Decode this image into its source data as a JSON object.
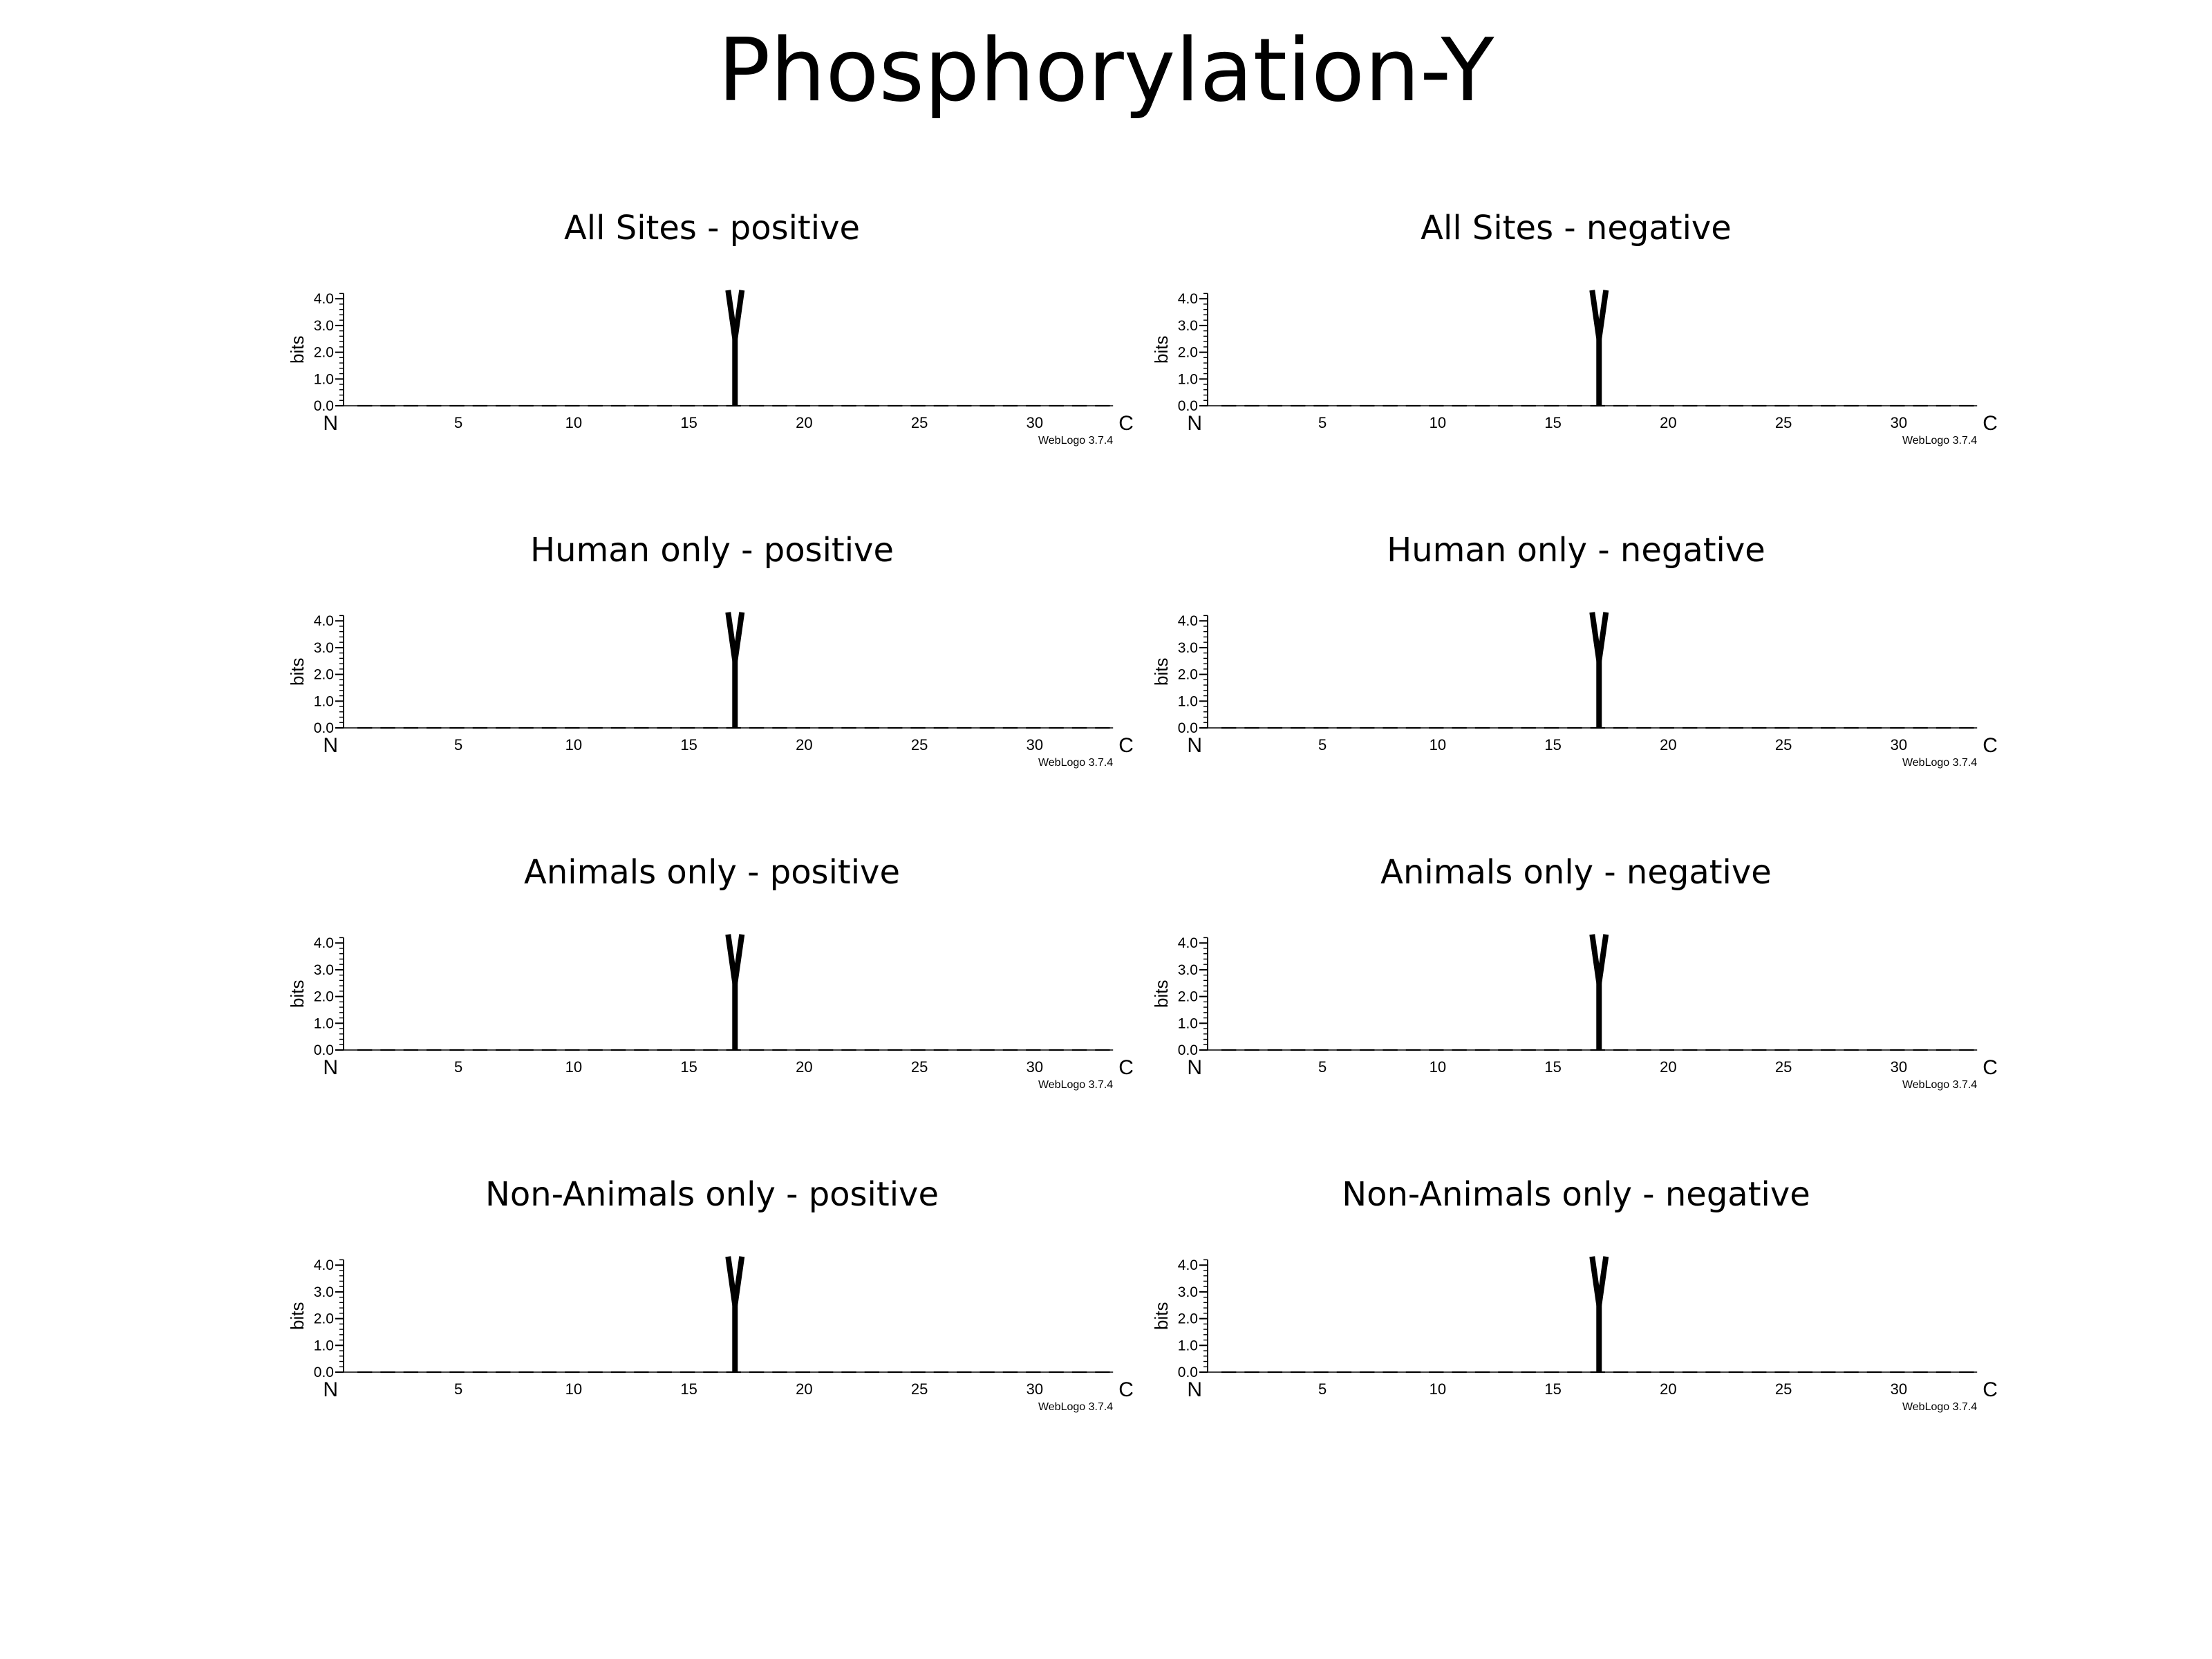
{
  "title": "Phosphorylation-Y",
  "chart_data": [
    {
      "type": "sequence-logo",
      "title": "All Sites - positive",
      "ylabel": "bits",
      "ylim": [
        0,
        4.32
      ],
      "yticks": [
        "0.0",
        "1.0",
        "2.0",
        "3.0",
        "4.0"
      ],
      "xticks": [
        "5",
        "10",
        "15",
        "20",
        "25",
        "30"
      ],
      "x_start_label": "N",
      "x_end_label": "C",
      "positions": [
        1,
        33
      ],
      "watermark": "WebLogo 3.7.4",
      "letters": [
        {
          "position": 17,
          "residue": "Y",
          "bits": 4.32
        }
      ]
    },
    {
      "type": "sequence-logo",
      "title": "All Sites - negative",
      "ylabel": "bits",
      "ylim": [
        0,
        4.32
      ],
      "yticks": [
        "0.0",
        "1.0",
        "2.0",
        "3.0",
        "4.0"
      ],
      "xticks": [
        "5",
        "10",
        "15",
        "20",
        "25",
        "30"
      ],
      "x_start_label": "N",
      "x_end_label": "C",
      "positions": [
        1,
        33
      ],
      "watermark": "WebLogo 3.7.4",
      "letters": [
        {
          "position": 17,
          "residue": "Y",
          "bits": 4.32
        }
      ]
    },
    {
      "type": "sequence-logo",
      "title": "Human only - positive",
      "ylabel": "bits",
      "ylim": [
        0,
        4.32
      ],
      "yticks": [
        "0.0",
        "1.0",
        "2.0",
        "3.0",
        "4.0"
      ],
      "xticks": [
        "5",
        "10",
        "15",
        "20",
        "25",
        "30"
      ],
      "x_start_label": "N",
      "x_end_label": "C",
      "positions": [
        1,
        33
      ],
      "watermark": "WebLogo 3.7.4",
      "letters": [
        {
          "position": 17,
          "residue": "Y",
          "bits": 4.32
        }
      ]
    },
    {
      "type": "sequence-logo",
      "title": "Human only - negative",
      "ylabel": "bits",
      "ylim": [
        0,
        4.32
      ],
      "yticks": [
        "0.0",
        "1.0",
        "2.0",
        "3.0",
        "4.0"
      ],
      "xticks": [
        "5",
        "10",
        "15",
        "20",
        "25",
        "30"
      ],
      "x_start_label": "N",
      "x_end_label": "C",
      "positions": [
        1,
        33
      ],
      "watermark": "WebLogo 3.7.4",
      "letters": [
        {
          "position": 17,
          "residue": "Y",
          "bits": 4.32
        }
      ]
    },
    {
      "type": "sequence-logo",
      "title": "Animals only - positive",
      "ylabel": "bits",
      "ylim": [
        0,
        4.32
      ],
      "yticks": [
        "0.0",
        "1.0",
        "2.0",
        "3.0",
        "4.0"
      ],
      "xticks": [
        "5",
        "10",
        "15",
        "20",
        "25",
        "30"
      ],
      "x_start_label": "N",
      "x_end_label": "C",
      "positions": [
        1,
        33
      ],
      "watermark": "WebLogo 3.7.4",
      "letters": [
        {
          "position": 17,
          "residue": "Y",
          "bits": 4.32
        }
      ]
    },
    {
      "type": "sequence-logo",
      "title": "Animals only - negative",
      "ylabel": "bits",
      "ylim": [
        0,
        4.32
      ],
      "yticks": [
        "0.0",
        "1.0",
        "2.0",
        "3.0",
        "4.0"
      ],
      "xticks": [
        "5",
        "10",
        "15",
        "20",
        "25",
        "30"
      ],
      "x_start_label": "N",
      "x_end_label": "C",
      "positions": [
        1,
        33
      ],
      "watermark": "WebLogo 3.7.4",
      "letters": [
        {
          "position": 17,
          "residue": "Y",
          "bits": 4.32
        }
      ]
    },
    {
      "type": "sequence-logo",
      "title": "Non-Animals only - positive",
      "ylabel": "bits",
      "ylim": [
        0,
        4.32
      ],
      "yticks": [
        "0.0",
        "1.0",
        "2.0",
        "3.0",
        "4.0"
      ],
      "xticks": [
        "5",
        "10",
        "15",
        "20",
        "25",
        "30"
      ],
      "x_start_label": "N",
      "x_end_label": "C",
      "positions": [
        1,
        33
      ],
      "watermark": "WebLogo 3.7.4",
      "letters": [
        {
          "position": 17,
          "residue": "Y",
          "bits": 4.32
        }
      ]
    },
    {
      "type": "sequence-logo",
      "title": "Non-Animals only - negative",
      "ylabel": "bits",
      "ylim": [
        0,
        4.32
      ],
      "yticks": [
        "0.0",
        "1.0",
        "2.0",
        "3.0",
        "4.0"
      ],
      "xticks": [
        "5",
        "10",
        "15",
        "20",
        "25",
        "30"
      ],
      "x_start_label": "N",
      "x_end_label": "C",
      "positions": [
        1,
        33
      ],
      "watermark": "WebLogo 3.7.4",
      "letters": [
        {
          "position": 17,
          "residue": "Y",
          "bits": 4.32
        }
      ]
    }
  ]
}
